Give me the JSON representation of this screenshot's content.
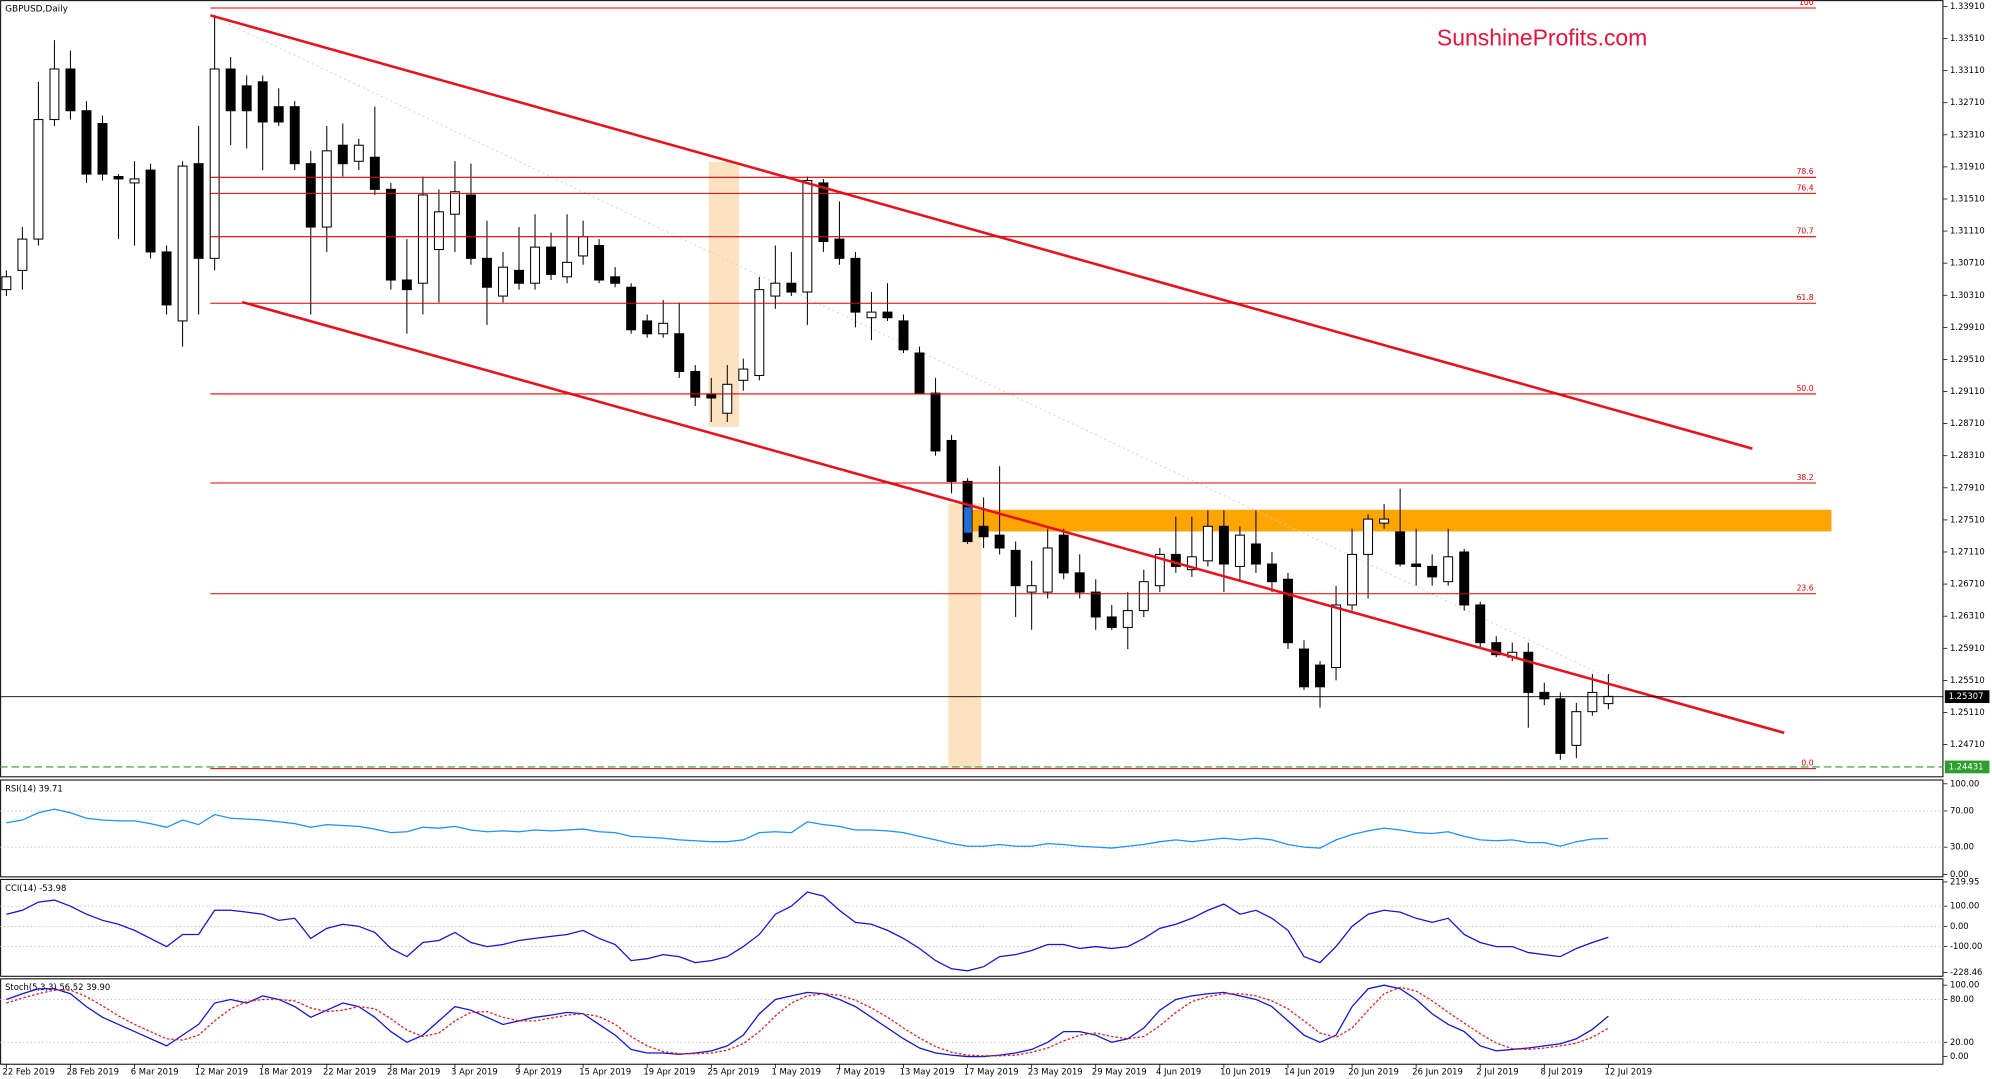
{
  "chart_data": {
    "type": "candlestick",
    "title": "GBPUSD,Daily",
    "watermark": "SunshineProfits.com",
    "categories": [
      "22 Feb 2019",
      null,
      null,
      null,
      "28 Feb 2019",
      null,
      null,
      null,
      "6 Mar 2019",
      null,
      null,
      null,
      "12 Mar 2019",
      null,
      null,
      null,
      "18 Mar 2019",
      null,
      null,
      null,
      "22 Mar 2019",
      null,
      null,
      null,
      "28 Mar 2019",
      null,
      null,
      null,
      "3 Apr 2019",
      null,
      null,
      null,
      "9 Apr 2019",
      null,
      null,
      null,
      "15 Apr 2019",
      null,
      null,
      null,
      "19 Apr 2019",
      null,
      null,
      null,
      "25 Apr 2019",
      null,
      null,
      null,
      "1 May 2019",
      null,
      null,
      null,
      "7 May 2019",
      null,
      null,
      null,
      "13 May 2019",
      null,
      null,
      null,
      "17 May 2019",
      null,
      null,
      null,
      "23 May 2019",
      null,
      null,
      null,
      "29 May 2019",
      null,
      null,
      null,
      "4 Jun 2019",
      null,
      null,
      null,
      "10 Jun 2019",
      null,
      null,
      null,
      "14 Jun 2019",
      null,
      null,
      null,
      "20 Jun 2019",
      null,
      null,
      null,
      "26 Jun 2019",
      null,
      null,
      null,
      "2 Jul 2019",
      null,
      null,
      null,
      "8 Jul 2019",
      null,
      null,
      null,
      "12 Jul 2019"
    ],
    "open": [
      1.3038,
      1.3062,
      1.3101,
      1.325,
      1.3313,
      1.3261,
      1.3245,
      1.3179,
      1.3171,
      1.3187,
      1.3085,
      1.2999,
      1.3195,
      1.3077,
      1.3313,
      1.3292,
      1.3297,
      1.3266,
      1.3266,
      1.3195,
      1.3116,
      1.3218,
      1.3198,
      1.3203,
      1.3163,
      1.305,
      1.3046,
      1.3088,
      1.3132,
      1.3156,
      1.3077,
      1.303,
      1.3062,
      1.3046,
      1.3091,
      1.3054,
      1.308,
      1.3093,
      1.3054,
      1.3041,
      1.2999,
      1.2983,
      1.2983,
      1.2936,
      1.2908,
      1.2884,
      1.2925,
      1.2931,
      1.303,
      1.3046,
      1.3035,
      1.3171,
      1.3101,
      1.3077,
      1.3003,
      1.301,
      1.2999,
      1.2959,
      1.2909,
      1.285,
      1.2799,
      1.2743,
      1.2732,
      1.2713,
      1.2661,
      1.2661,
      1.2732,
      1.2685,
      1.2661,
      1.263,
      1.2617,
      1.2638,
      1.2669,
      1.2708,
      1.2689,
      1.27,
      1.2743,
      1.2693,
      1.2721,
      1.2696,
      1.2677,
      1.259,
      1.257,
      1.2567,
      1.2645,
      1.2708,
      1.2747,
      1.2736,
      1.2696,
      1.2693,
      1.2674,
      1.2711,
      1.2645,
      1.2598,
      1.258,
      1.2586,
      1.2536,
      1.2528,
      1.247,
      1.2512,
      1.2522
    ],
    "high": [
      1.3062,
      1.3116,
      1.3297,
      1.3349,
      1.3336,
      1.3273,
      1.3255,
      1.3182,
      1.3198,
      1.3195,
      1.3093,
      1.3198,
      1.3242,
      1.338,
      1.3328,
      1.3305,
      1.3305,
      1.3289,
      1.3273,
      1.3211,
      1.3242,
      1.3245,
      1.3226,
      1.3266,
      1.3171,
      1.3101,
      1.3179,
      1.3163,
      1.3198,
      1.3195,
      1.3124,
      1.3085,
      1.3116,
      1.3132,
      1.3109,
      1.3132,
      1.3124,
      1.3101,
      1.3066,
      1.3046,
      1.3007,
      1.3025,
      1.3022,
      1.2944,
      1.2928,
      1.2944,
      1.2952,
      1.3054,
      1.3093,
      1.3085,
      1.3179,
      1.3176,
      1.3148,
      1.3085,
      1.3035,
      1.3046,
      1.3007,
      1.2967,
      1.2928,
      1.2857,
      1.2803,
      1.2779,
      1.2818,
      1.2724,
      1.27,
      1.274,
      1.274,
      1.2708,
      1.2677,
      1.2645,
      1.2661,
      1.2689,
      1.2716,
      1.2755,
      1.2755,
      1.2763,
      1.2763,
      1.2743,
      1.2763,
      1.2711,
      1.2685,
      1.2601,
      1.2575,
      1.2669,
      1.274,
      1.2758,
      1.2771,
      1.279,
      1.274,
      1.2708,
      1.274,
      1.2715,
      1.2649,
      1.2606,
      1.2598,
      1.2598,
      1.2548,
      1.2536,
      1.2523,
      1.2559,
      1.2559
    ],
    "low": [
      1.303,
      1.3038,
      1.3093,
      1.3242,
      1.325,
      1.3171,
      1.3174,
      1.3101,
      1.3093,
      1.3077,
      1.3007,
      1.2967,
      1.3007,
      1.3062,
      1.3218,
      1.3214,
      1.3187,
      1.3242,
      1.3187,
      1.3007,
      1.3085,
      1.3179,
      1.3187,
      1.3156,
      1.3038,
      1.2983,
      1.3007,
      1.3022,
      1.3085,
      1.3069,
      1.2994,
      1.3022,
      1.3038,
      1.3038,
      1.305,
      1.3046,
      1.3069,
      1.3046,
      1.3041,
      1.2983,
      1.2978,
      1.2978,
      1.2928,
      1.2893,
      1.2873,
      1.2873,
      1.2912,
      1.2925,
      1.3014,
      1.303,
      1.2994,
      1.3085,
      1.3069,
      1.2991,
      1.2975,
      1.2999,
      1.2959,
      1.2909,
      1.2831,
      1.2784,
      1.2721,
      1.2716,
      1.2708,
      1.263,
      1.2614,
      1.2653,
      1.2677,
      1.2653,
      1.2614,
      1.2614,
      1.259,
      1.263,
      1.2661,
      1.2685,
      1.268,
      1.2693,
      1.2661,
      1.2674,
      1.2685,
      1.2661,
      1.259,
      1.2539,
      1.2517,
      1.2551,
      1.2638,
      1.2653,
      1.274,
      1.2693,
      1.2669,
      1.2669,
      1.2669,
      1.2638,
      1.259,
      1.258,
      1.2575,
      1.2492,
      1.252,
      1.2452,
      1.2454,
      1.2507,
      1.2515
    ],
    "close": [
      1.3054,
      1.3101,
      1.325,
      1.3313,
      1.3261,
      1.3182,
      1.3182,
      1.3176,
      1.3176,
      1.3085,
      1.3019,
      1.3192,
      1.3077,
      1.3313,
      1.3261,
      1.3261,
      1.3247,
      1.3247,
      1.3195,
      1.3116,
      1.3211,
      1.3195,
      1.3218,
      1.3163,
      1.305,
      1.3038,
      1.3156,
      1.3135,
      1.316,
      1.3077,
      1.3041,
      1.3066,
      1.3046,
      1.3091,
      1.3057,
      1.3072,
      1.3104,
      1.305,
      1.3046,
      1.2988,
      1.2983,
      1.2996,
      1.2936,
      1.2904,
      1.2903,
      1.292,
      1.2939,
      1.3038,
      1.3046,
      1.3035,
      1.3174,
      1.3098,
      1.3077,
      1.301,
      1.301,
      1.3003,
      1.2963,
      1.2909,
      1.2837,
      1.2799,
      1.2724,
      1.273,
      1.2716,
      1.2669,
      1.2669,
      1.2716,
      1.2685,
      1.2661,
      1.263,
      1.2617,
      1.2638,
      1.2674,
      1.2708,
      1.2693,
      1.2705,
      1.2743,
      1.2696,
      1.2732,
      1.2696,
      1.2674,
      1.2598,
      1.2543,
      1.2543,
      1.2645,
      1.2708,
      1.2752,
      1.2752,
      1.2696,
      1.2693,
      1.268,
      1.2705,
      1.2645,
      1.2598,
      1.2583,
      1.2586,
      1.2536,
      1.2528,
      1.246,
      1.2512,
      1.2536,
      1.2531
    ],
    "up_color": "#ffffff",
    "down_color": "#000000",
    "ylim": [
      1.243,
      1.3399
    ],
    "yticks": [
      {
        "value": 1.3391,
        "label": "1.33910"
      },
      {
        "value": 1.3351,
        "label": "1.33510"
      },
      {
        "value": 1.3311,
        "label": "1.33110"
      },
      {
        "value": 1.3271,
        "label": "1.32710"
      },
      {
        "value": 1.3231,
        "label": "1.32310"
      },
      {
        "value": 1.3191,
        "label": "1.31910"
      },
      {
        "value": 1.3151,
        "label": "1.31510"
      },
      {
        "value": 1.3111,
        "label": "1.31110"
      },
      {
        "value": 1.3071,
        "label": "1.30710"
      },
      {
        "value": 1.3031,
        "label": "1.30310"
      },
      {
        "value": 1.2991,
        "label": "1.29910"
      },
      {
        "value": 1.2951,
        "label": "1.29510"
      },
      {
        "value": 1.2911,
        "label": "1.29110"
      },
      {
        "value": 1.2871,
        "label": "1.28710"
      },
      {
        "value": 1.2831,
        "label": "1.28310"
      },
      {
        "value": 1.2791,
        "label": "1.27910"
      },
      {
        "value": 1.2751,
        "label": "1.27510"
      },
      {
        "value": 1.2711,
        "label": "1.27110"
      },
      {
        "value": 1.2671,
        "label": "1.26710"
      },
      {
        "value": 1.2631,
        "label": "1.26310"
      },
      {
        "value": 1.2591,
        "label": "1.25910"
      },
      {
        "value": 1.2551,
        "label": "1.25510"
      },
      {
        "value": 1.2511,
        "label": "1.25110"
      },
      {
        "value": 1.2471,
        "label": "1.24710"
      }
    ],
    "current_price": {
      "value": 1.25307,
      "label": "1.25307"
    },
    "low_line": {
      "value": 1.24431,
      "label": "1.24431",
      "color": "#2e9e2e"
    },
    "fib_color": "#e00000",
    "fib_levels": [
      {
        "label": "100",
        "value": 1.3389
      },
      {
        "label": "78.6",
        "value": 1.3178
      },
      {
        "label": "76.4",
        "value": 1.3158
      },
      {
        "label": "70.7",
        "value": 1.3104
      },
      {
        "label": "61.8",
        "value": 1.3021
      },
      {
        "label": "50.0",
        "value": 1.2908
      },
      {
        "label": "38.2",
        "value": 1.2797
      },
      {
        "label": "23.6",
        "value": 1.2659
      },
      {
        "label": "0.0",
        "value": 1.2441
      }
    ],
    "indicators": [
      {
        "type": "line",
        "label": "RSI(14) 39.71",
        "ylim": [
          0,
          100
        ],
        "yticks": [
          {
            "value": 100,
            "label": "100.00"
          },
          {
            "value": 70,
            "label": "70.00"
          },
          {
            "value": 30,
            "label": "30.00"
          },
          {
            "value": 0,
            "label": "0.00"
          }
        ],
        "levels": [
          70,
          30
        ],
        "series": [
          {
            "color": "#1e90ff",
            "values": [
              57,
              60,
              68,
              72,
              68,
              62,
              60,
              59,
              59,
              56,
              52,
              60,
              55,
              66,
              62,
              61,
              60,
              58,
              56,
              52,
              55,
              54,
              53,
              50,
              46,
              47,
              52,
              51,
              53,
              49,
              47,
              48,
              47,
              49,
              48,
              49,
              50,
              47,
              46,
              42,
              41,
              40,
              38,
              37,
              36,
              36,
              38,
              46,
              47,
              46,
              58,
              55,
              53,
              49,
              49,
              48,
              46,
              42,
              38,
              34,
              31,
              31,
              33,
              31,
              31,
              34,
              33,
              31,
              30,
              29,
              31,
              33,
              36,
              38,
              36,
              38,
              40,
              38,
              40,
              38,
              33,
              30,
              29,
              38,
              44,
              48,
              51,
              49,
              46,
              45,
              47,
              42,
              38,
              37,
              38,
              35,
              35,
              31,
              36,
              39,
              39.71
            ]
          }
        ]
      },
      {
        "type": "line",
        "label": "CCI(14) -53.98",
        "ylim": [
          -228.46,
          219.95
        ],
        "yticks": [
          {
            "value": 219.95,
            "label": "219.95"
          },
          {
            "value": 100,
            "label": "100.00"
          },
          {
            "value": 0,
            "label": "0.00"
          },
          {
            "value": -100,
            "label": "-100.00"
          },
          {
            "value": -228.46,
            "label": "-228.46"
          }
        ],
        "levels": [
          100,
          0,
          -100
        ],
        "series": [
          {
            "color": "#1414d2",
            "values": [
              60,
              80,
              120,
              130,
              100,
              60,
              30,
              10,
              -20,
              -60,
              -100,
              -40,
              -40,
              80,
              80,
              70,
              60,
              30,
              40,
              -60,
              -10,
              10,
              0,
              -30,
              -110,
              -150,
              -80,
              -70,
              -30,
              -80,
              -100,
              -90,
              -70,
              -60,
              -50,
              -40,
              -20,
              -60,
              -90,
              -170,
              -160,
              -140,
              -150,
              -180,
              -170,
              -150,
              -100,
              -40,
              60,
              100,
              170,
              150,
              80,
              20,
              10,
              -20,
              -60,
              -110,
              -170,
              -210,
              -220,
              -200,
              -150,
              -140,
              -120,
              -90,
              -90,
              -110,
              -100,
              -110,
              -100,
              -60,
              -10,
              10,
              40,
              80,
              110,
              60,
              80,
              40,
              -20,
              -150,
              -180,
              -100,
              0,
              60,
              80,
              70,
              40,
              20,
              40,
              -40,
              -80,
              -100,
              -100,
              -130,
              -140,
              -150,
              -110,
              -80,
              -53.98
            ]
          }
        ]
      },
      {
        "type": "line",
        "label": "Stoch(5,3,3) 56.52 39.90",
        "ylim": [
          0,
          100
        ],
        "yticks": [
          {
            "value": 100,
            "label": "100.00"
          },
          {
            "value": 80,
            "label": "80.00"
          },
          {
            "value": 20,
            "label": "20.00"
          },
          {
            "value": 0,
            "label": "0.00"
          }
        ],
        "levels": [
          80,
          20
        ],
        "series": [
          {
            "color": "#1414d2",
            "values": [
              80,
              88,
              95,
              95,
              88,
              70,
              55,
              45,
              35,
              25,
              15,
              30,
              45,
              75,
              80,
              75,
              85,
              80,
              70,
              55,
              65,
              75,
              70,
              55,
              35,
              20,
              30,
              50,
              70,
              65,
              55,
              45,
              50,
              55,
              58,
              62,
              60,
              45,
              30,
              10,
              5,
              5,
              3,
              5,
              8,
              15,
              30,
              60,
              80,
              85,
              90,
              88,
              80,
              70,
              55,
              40,
              25,
              12,
              5,
              2,
              0,
              0,
              2,
              5,
              10,
              20,
              35,
              35,
              30,
              20,
              25,
              40,
              65,
              80,
              85,
              88,
              90,
              85,
              80,
              70,
              50,
              30,
              20,
              30,
              70,
              95,
              100,
              95,
              80,
              60,
              45,
              35,
              15,
              8,
              10,
              12,
              15,
              18,
              25,
              38,
              56.52
            ]
          },
          {
            "color": "#e02020",
            "dashed": true,
            "values": [
              75,
              82,
              88,
              93,
              93,
              84,
              71,
              57,
              45,
              35,
              25,
              23,
              30,
              50,
              67,
              77,
              80,
              80,
              78,
              68,
              63,
              65,
              70,
              67,
              53,
              37,
              28,
              33,
              50,
              62,
              63,
              55,
              50,
              50,
              54,
              58,
              60,
              56,
              45,
              28,
              15,
              7,
              4,
              4,
              5,
              9,
              18,
              35,
              57,
              75,
              85,
              88,
              86,
              79,
              68,
              55,
              40,
              26,
              14,
              6,
              2,
              1,
              1,
              2,
              6,
              12,
              22,
              30,
              33,
              28,
              25,
              28,
              43,
              62,
              77,
              84,
              88,
              88,
              85,
              78,
              67,
              50,
              33,
              27,
              40,
              65,
              88,
              97,
              92,
              78,
              62,
              47,
              32,
              19,
              11,
              10,
              12,
              15,
              19,
              27,
              39.9
            ]
          }
        ]
      }
    ]
  }
}
